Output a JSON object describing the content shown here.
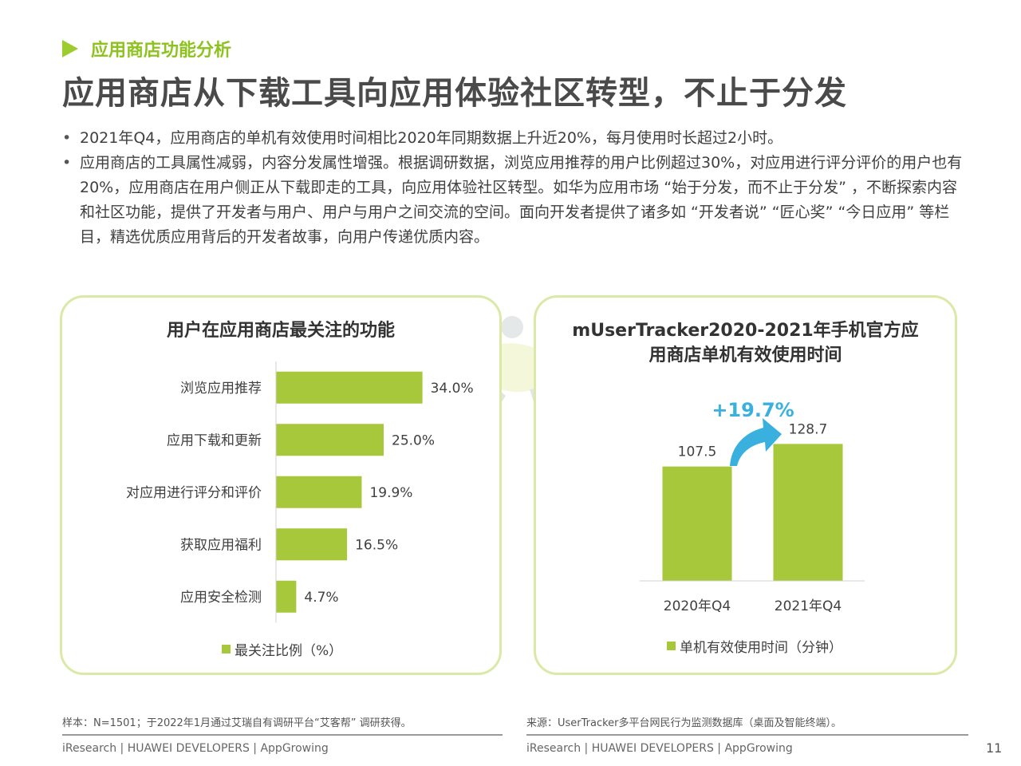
{
  "header": {
    "section_label": "应用商店功能分析",
    "title": "应用商店从下载工具向应用体验社区转型，不止于分发"
  },
  "bullets": [
    "2021年Q4，应用商店的单机有效使用时间相比2020年同期数据上升近20%，每月使用时长超过2小时。",
    "应用商店的工具属性减弱，内容分发属性增强。根据调研数据，浏览应用推荐的用户比例超过30%，对应用进行评分评价的用户也有20%，应用商店在用户侧正从下载即走的工具，向应用体验社区转型。如华为应用市场 “始于分发，而不止于分发” ，不断探索内容和社区功能，提供了开发者与用户、用户与用户之间交流的空间。面向开发者提供了诸多如 “开发者说” “匠心奖” “今日应用” 等栏目，精选优质应用背后的开发者故事，向用户传递优质内容。"
  ],
  "chart_data": [
    {
      "type": "bar",
      "orientation": "horizontal",
      "title": "用户在应用商店最关注的功能",
      "categories": [
        "浏览应用推荐",
        "应用下载和更新",
        "对应用进行评分和评价",
        "获取应用福利",
        "应用安全检测"
      ],
      "values": [
        34.0,
        25.0,
        19.9,
        16.5,
        4.7
      ],
      "value_labels": [
        "34.0%",
        "25.0%",
        "19.9%",
        "16.5%",
        "4.7%"
      ],
      "series_name": "最关注比例（%）",
      "color": "#a6c83a",
      "xlim": [
        0,
        100
      ]
    },
    {
      "type": "bar",
      "orientation": "vertical",
      "title_line1": "mUserTracker2020-2021年手机官方应",
      "title_line2": "用商店单机有效使用时间",
      "categories": [
        "2020年Q4",
        "2021年Q4"
      ],
      "values": [
        107.5,
        128.7
      ],
      "value_labels": [
        "107.5",
        "128.7"
      ],
      "series_name": "单机有效使用时间（分钟）",
      "growth_label": "+19.7%",
      "color": "#a6c83a",
      "accent_color": "#3ab0df",
      "ylim": [
        0,
        180
      ]
    }
  ],
  "footer": {
    "sample_note": "样本：N=1501；于2022年1月通过艾瑞自有调研平台“艾客帮” 调研获得。",
    "source_note": "来源：UserTracker多平台网民行为监测数据库（桌面及智能终端）。",
    "brand": "iResearch | HUAWEI DEVELOPERS | AppGrowing",
    "page_number": "11"
  }
}
